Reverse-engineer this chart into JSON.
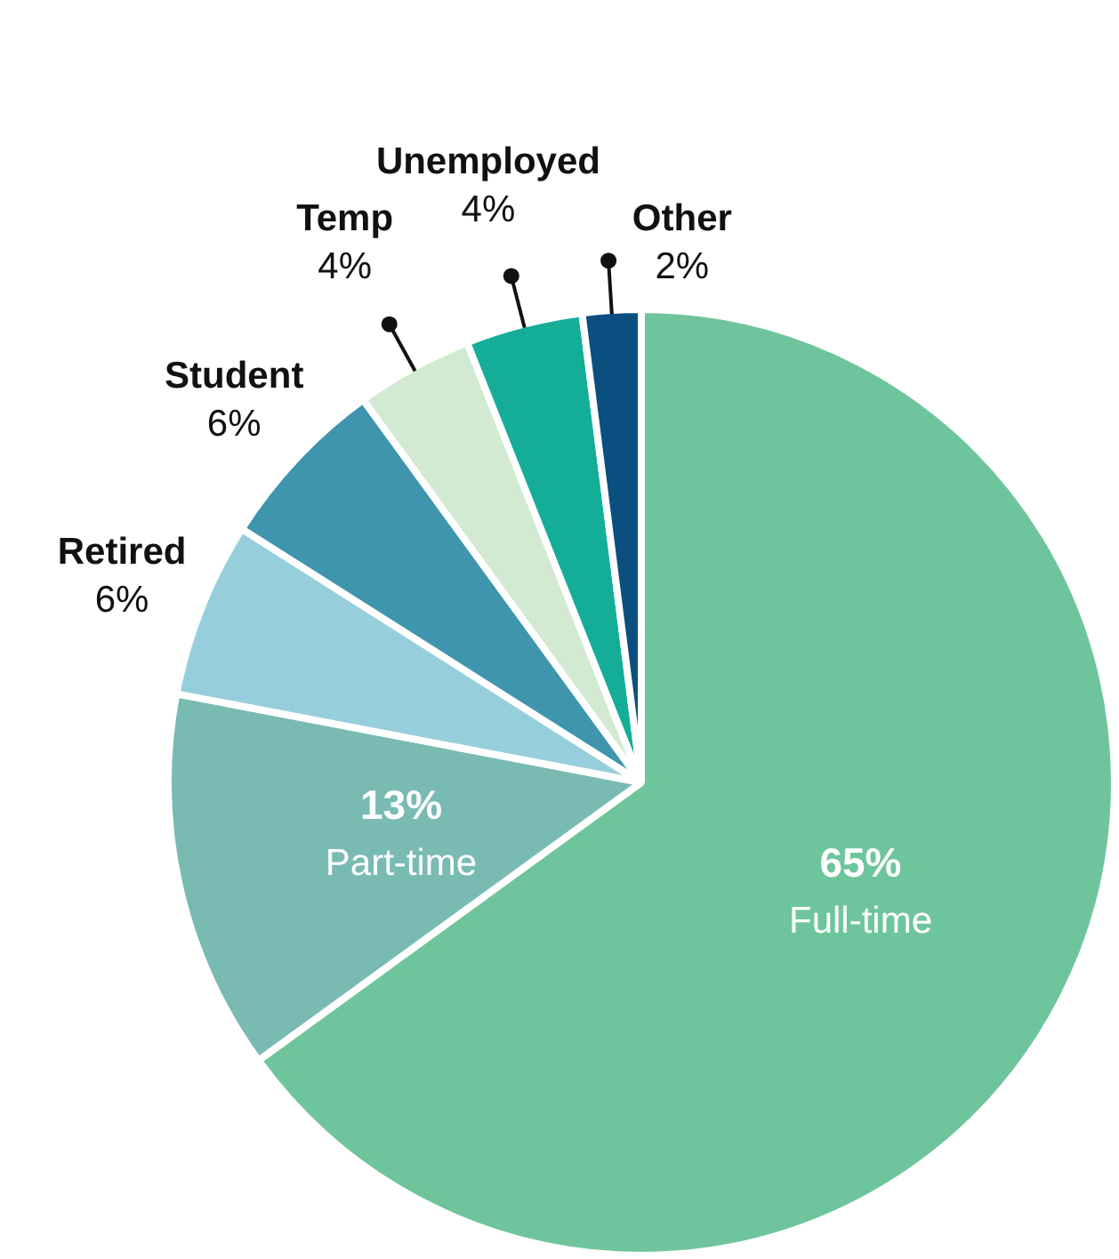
{
  "chart_data": {
    "type": "pie",
    "categories": [
      "Full-time",
      "Part-time",
      "Retired",
      "Student",
      "Temp",
      "Unemployed",
      "Other"
    ],
    "values": [
      65,
      13,
      6,
      6,
      4,
      4,
      2
    ],
    "value_labels": [
      "65%",
      "13%",
      "6%",
      "6%",
      "4%",
      "4%",
      "2%"
    ],
    "colors": [
      "#6fc59b",
      "#79bbb3",
      "#96cfdb",
      "#3f95ae",
      "#d2e9d2",
      "#14ae98",
      "#0b4f80"
    ]
  }
}
